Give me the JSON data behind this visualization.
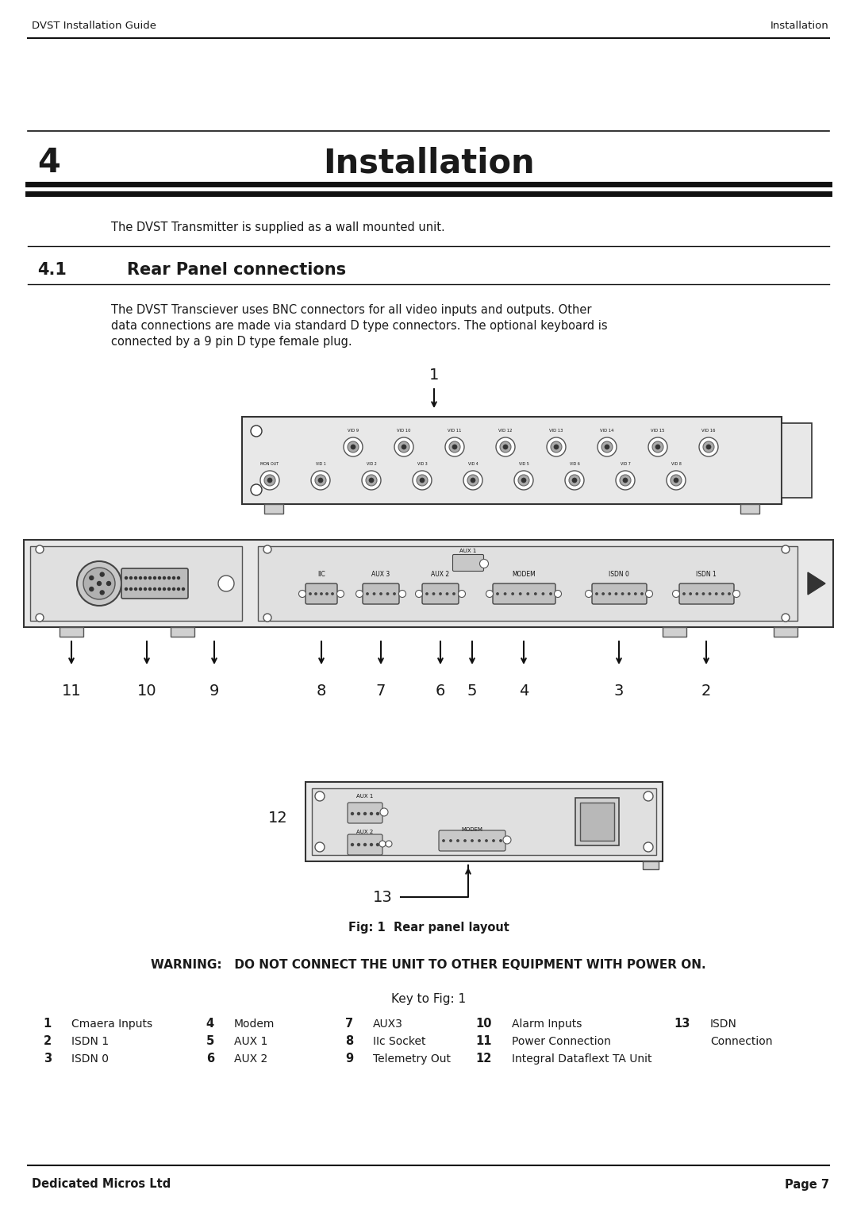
{
  "header_left": "DVST Installation Guide",
  "header_right": "Installation",
  "footer_left": "Dedicated Micros Ltd",
  "footer_right": "Page 7",
  "chapter_num": "4",
  "chapter_title": "Installation",
  "section_num": "4.1",
  "section_title": "Rear Panel connections",
  "intro_text": "The DVST Transmitter is supplied as a wall mounted unit.",
  "body_line1": "The DVST Transciever uses BNC connectors for all video inputs and outputs. Other",
  "body_line2": "data connections are made via standard D type connectors. The optional keyboard is",
  "body_line3": "connected by a 9 pin D type female plug.",
  "fig_caption": "Fig: 1  Rear panel layout",
  "warning_text": "WARNING:   DO NOT CONNECT THE UNIT TO OTHER EQUIPMENT WITH POWER ON.",
  "key_title": "Key to Fig: 1",
  "bg_color": "#ffffff",
  "text_color": "#1a1a1a",
  "line_color": "#111111",
  "panel_fill": "#e8e8e8",
  "panel_edge": "#333333",
  "connector_fill": "#cccccc",
  "connector_edge": "#444444"
}
